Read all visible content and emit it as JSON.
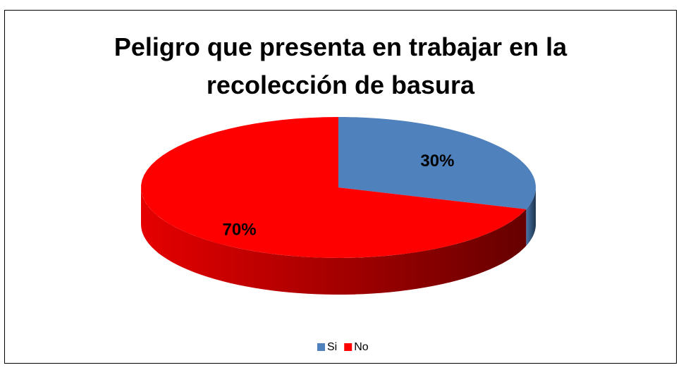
{
  "chart_data": {
    "type": "pie",
    "title": "Peligro que presenta en trabajar en la recolección de basura",
    "categories": [
      "Si",
      "No"
    ],
    "values": [
      30,
      70
    ],
    "value_labels": [
      "30%",
      "70%"
    ],
    "colors": [
      "#4f81bd",
      "#ff0000"
    ],
    "legend": "bottom"
  }
}
